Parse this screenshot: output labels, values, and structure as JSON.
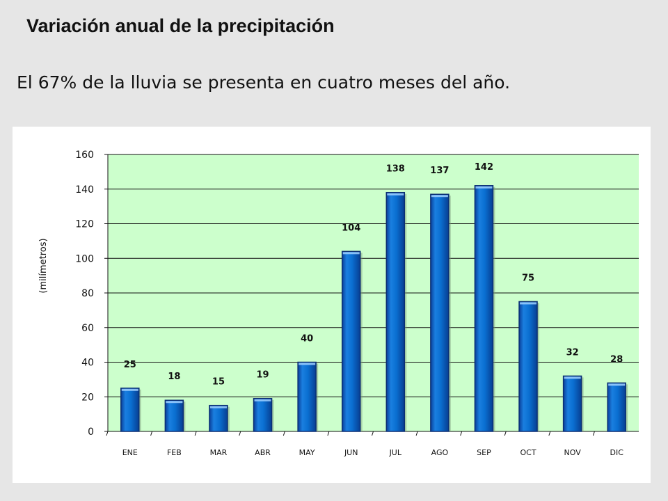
{
  "slide": {
    "title": "Variación anual de la precipitación",
    "subtitle": "El 67% de la lluvia se presenta en cuatro meses del año."
  },
  "chart_data": {
    "type": "bar",
    "title": "",
    "xlabel": "",
    "ylabel": "(milímetros)",
    "categories": [
      "ENE",
      "FEB",
      "MAR",
      "ABR",
      "MAY",
      "JUN",
      "JUL",
      "AGO",
      "SEP",
      "OCT",
      "NOV",
      "DIC"
    ],
    "values": [
      25,
      18,
      15,
      19,
      40,
      104,
      138,
      137,
      142,
      75,
      32,
      28
    ],
    "ylim": [
      0,
      160
    ],
    "yticks": [
      0,
      20,
      40,
      60,
      80,
      100,
      120,
      140,
      160
    ],
    "grid": true,
    "legend": "none",
    "colors": {
      "plot_background": "#ccffcc",
      "bar_fill": "#0a6fd1",
      "bar_edge": "#0b2f73",
      "grid": "#111111"
    }
  }
}
